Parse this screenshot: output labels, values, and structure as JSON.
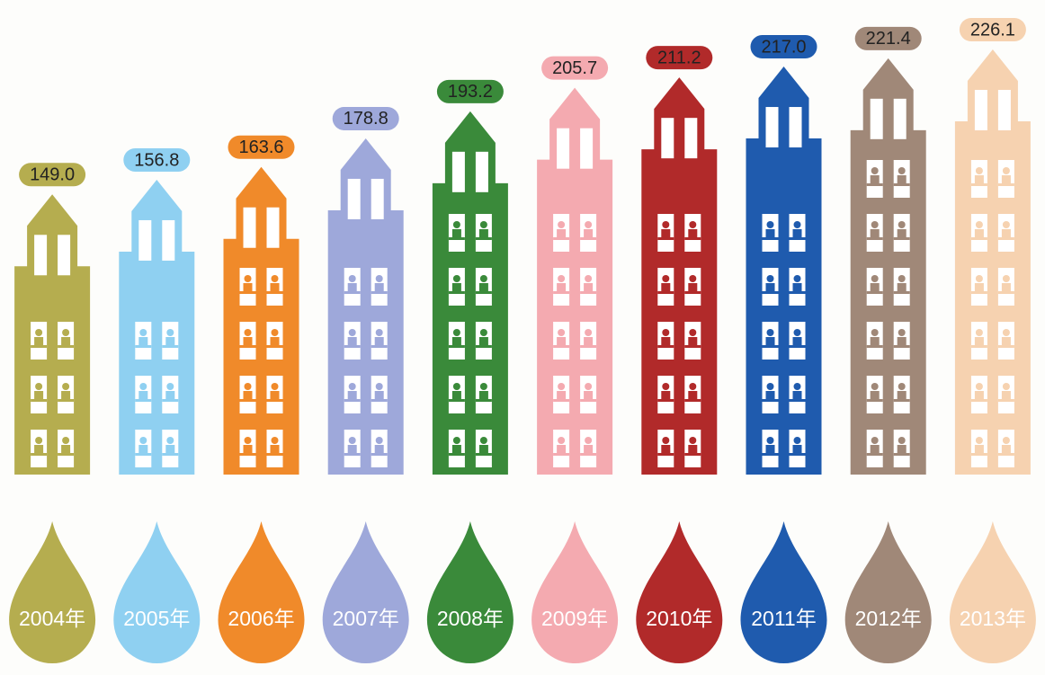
{
  "chart_data": {
    "type": "bar",
    "categories": [
      "2004年",
      "2005年",
      "2006年",
      "2007年",
      "2008年",
      "2009年",
      "2010年",
      "2011年",
      "2012年",
      "2013年"
    ],
    "values": [
      149.0,
      156.8,
      163.6,
      178.8,
      193.2,
      205.7,
      211.2,
      217.0,
      221.4,
      226.1
    ],
    "value_labels": [
      "149.0",
      "156.8",
      "163.6",
      "178.8",
      "193.2",
      "205.7",
      "211.2",
      "217.0",
      "221.4",
      "226.1"
    ],
    "colors": [
      "#b5ad4f",
      "#8fd0f1",
      "#f08a2a",
      "#9ea8da",
      "#3a8a3a",
      "#f4aab0",
      "#b12a2a",
      "#1f5bae",
      "#a08878",
      "#f6d2b0"
    ]
  }
}
